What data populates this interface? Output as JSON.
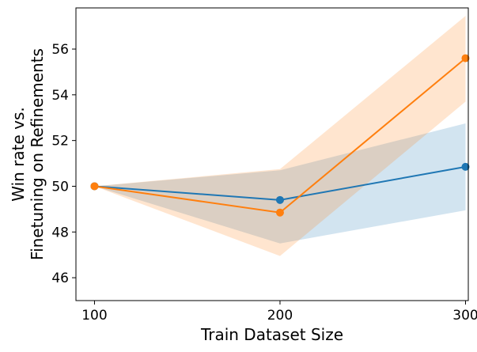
{
  "chart_data": {
    "type": "line",
    "title": "",
    "xlabel": "Train Dataset Size",
    "ylabel_lines": [
      "Win rate vs.",
      "Finetuning on Refinements"
    ],
    "x": [
      100,
      200,
      300
    ],
    "xticks": [
      "100",
      "200",
      "300"
    ],
    "yticks": [
      "46",
      "48",
      "50",
      "52",
      "54",
      "56"
    ],
    "xlim": [
      90,
      301.5
    ],
    "ylim": [
      45.0,
      57.8
    ],
    "series": [
      {
        "name": "blue",
        "color": "#1f77b4",
        "values": [
          50.0,
          49.4,
          50.85
        ],
        "band_lower": [
          50.0,
          47.5,
          48.95
        ],
        "band_upper": [
          50.0,
          50.7,
          52.75
        ]
      },
      {
        "name": "orange",
        "color": "#ff7f0e",
        "values": [
          50.0,
          48.85,
          55.6
        ],
        "band_lower": [
          50.0,
          46.95,
          53.7
        ],
        "band_upper": [
          50.0,
          50.75,
          57.45
        ]
      }
    ]
  }
}
